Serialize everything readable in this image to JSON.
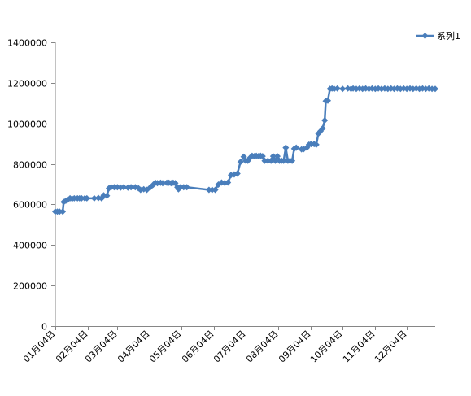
{
  "chart_data": {
    "type": "line",
    "title": "",
    "xlabel": "",
    "ylabel": "",
    "ylim": [
      0,
      1400000
    ],
    "y_ticks": [
      0,
      200000,
      400000,
      600000,
      800000,
      1000000,
      1200000,
      1400000
    ],
    "y_tick_labels": [
      "0",
      "200000",
      "400000",
      "600000",
      "800000",
      "1000000",
      "1200000",
      "1400000"
    ],
    "x_domain": [
      "01-04",
      "12-31"
    ],
    "x_ticks": [
      "01-04",
      "02-04",
      "03-04",
      "04-04",
      "05-04",
      "06-04",
      "07-04",
      "08-04",
      "09-04",
      "10-04",
      "11-04",
      "12-04"
    ],
    "x_tick_labels": [
      "01月04日",
      "02月04日",
      "03月04日",
      "04月04日",
      "05月04日",
      "06月04日",
      "07月04日",
      "08月04日",
      "09月04日",
      "10月04日",
      "11月04日",
      "12月04日"
    ],
    "grid": false,
    "legend_position": "top-right",
    "color": "#4A7EBB",
    "marker": "diamond",
    "series": [
      {
        "name": "系列1",
        "points": [
          [
            "01-04",
            565000
          ],
          [
            "01-06",
            565000
          ],
          [
            "01-08",
            565000
          ],
          [
            "01-11",
            565000
          ],
          [
            "01-12",
            612000
          ],
          [
            "01-14",
            618000
          ],
          [
            "01-16",
            625000
          ],
          [
            "01-18",
            630000
          ],
          [
            "01-20",
            628000
          ],
          [
            "01-22",
            630000
          ],
          [
            "01-25",
            630000
          ],
          [
            "01-27",
            630000
          ],
          [
            "01-29",
            630000
          ],
          [
            "02-01",
            630000
          ],
          [
            "02-03",
            630000
          ],
          [
            "02-10",
            630000
          ],
          [
            "02-14",
            632000
          ],
          [
            "02-17",
            630000
          ],
          [
            "02-19",
            645000
          ],
          [
            "02-22",
            643000
          ],
          [
            "02-24",
            680000
          ],
          [
            "02-26",
            685000
          ],
          [
            "03-01",
            685000
          ],
          [
            "03-04",
            685000
          ],
          [
            "03-07",
            683000
          ],
          [
            "03-10",
            685000
          ],
          [
            "03-14",
            683000
          ],
          [
            "03-17",
            685000
          ],
          [
            "03-21",
            685000
          ],
          [
            "03-24",
            680000
          ],
          [
            "03-26",
            672000
          ],
          [
            "03-29",
            675000
          ],
          [
            "04-01",
            672000
          ],
          [
            "04-04",
            683000
          ],
          [
            "04-07",
            697000
          ],
          [
            "04-09",
            707000
          ],
          [
            "04-11",
            705000
          ],
          [
            "04-14",
            707000
          ],
          [
            "04-16",
            705000
          ],
          [
            "04-20",
            707000
          ],
          [
            "04-22",
            707000
          ],
          [
            "04-24",
            705000
          ],
          [
            "04-26",
            707000
          ],
          [
            "04-28",
            705000
          ],
          [
            "04-30",
            685000
          ],
          [
            "05-01",
            675000
          ],
          [
            "05-03",
            685000
          ],
          [
            "05-06",
            685000
          ],
          [
            "05-09",
            685000
          ],
          [
            "05-30",
            672000
          ],
          [
            "06-02",
            672000
          ],
          [
            "06-05",
            672000
          ],
          [
            "06-08",
            698000
          ],
          [
            "06-11",
            708000
          ],
          [
            "06-14",
            706000
          ],
          [
            "06-17",
            708000
          ],
          [
            "06-20",
            745000
          ],
          [
            "06-23",
            748000
          ],
          [
            "06-26",
            752000
          ],
          [
            "06-29",
            810000
          ],
          [
            "07-02",
            835000
          ],
          [
            "07-04",
            815000
          ],
          [
            "07-06",
            815000
          ],
          [
            "07-08",
            830000
          ],
          [
            "07-10",
            840000
          ],
          [
            "07-12",
            838000
          ],
          [
            "07-14",
            840000
          ],
          [
            "07-16",
            838000
          ],
          [
            "07-18",
            840000
          ],
          [
            "07-20",
            838000
          ],
          [
            "07-22",
            815000
          ],
          [
            "07-25",
            815000
          ],
          [
            "07-28",
            815000
          ],
          [
            "07-30",
            838000
          ],
          [
            "08-01",
            815000
          ],
          [
            "08-03",
            838000
          ],
          [
            "08-05",
            815000
          ],
          [
            "08-07",
            815000
          ],
          [
            "08-09",
            815000
          ],
          [
            "08-11",
            880000
          ],
          [
            "08-13",
            815000
          ],
          [
            "08-15",
            815000
          ],
          [
            "08-17",
            815000
          ],
          [
            "08-19",
            875000
          ],
          [
            "08-21",
            880000
          ],
          [
            "08-26",
            872000
          ],
          [
            "08-28",
            873000
          ],
          [
            "08-31",
            880000
          ],
          [
            "09-02",
            895000
          ],
          [
            "09-04",
            898000
          ],
          [
            "09-07",
            898000
          ],
          [
            "09-09",
            895000
          ],
          [
            "09-11",
            950000
          ],
          [
            "09-13",
            962000
          ],
          [
            "09-15",
            975000
          ],
          [
            "09-17",
            1015000
          ],
          [
            "09-18",
            1110000
          ],
          [
            "09-20",
            1112000
          ],
          [
            "09-22",
            1170000
          ],
          [
            "09-24",
            1172000
          ],
          [
            "09-26",
            1170000
          ],
          [
            "09-29",
            1172000
          ],
          [
            "10-04",
            1170000
          ],
          [
            "10-09",
            1172000
          ],
          [
            "10-12",
            1170000
          ],
          [
            "10-14",
            1172000
          ],
          [
            "10-17",
            1170000
          ],
          [
            "10-20",
            1172000
          ],
          [
            "10-23",
            1170000
          ],
          [
            "10-26",
            1172000
          ],
          [
            "10-29",
            1170000
          ],
          [
            "11-01",
            1172000
          ],
          [
            "11-04",
            1170000
          ],
          [
            "11-07",
            1172000
          ],
          [
            "11-10",
            1170000
          ],
          [
            "11-13",
            1172000
          ],
          [
            "11-16",
            1170000
          ],
          [
            "11-19",
            1172000
          ],
          [
            "11-22",
            1170000
          ],
          [
            "11-25",
            1172000
          ],
          [
            "11-28",
            1170000
          ],
          [
            "12-01",
            1172000
          ],
          [
            "12-04",
            1170000
          ],
          [
            "12-07",
            1172000
          ],
          [
            "12-10",
            1170000
          ],
          [
            "12-13",
            1172000
          ],
          [
            "12-16",
            1170000
          ],
          [
            "12-19",
            1172000
          ],
          [
            "12-22",
            1170000
          ],
          [
            "12-25",
            1172000
          ],
          [
            "12-28",
            1170000
          ],
          [
            "12-31",
            1170000
          ]
        ]
      }
    ]
  }
}
